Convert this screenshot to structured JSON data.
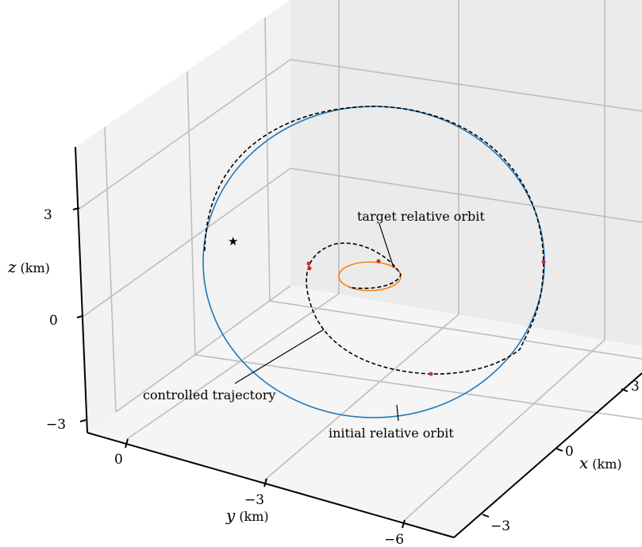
{
  "chart_data": {
    "type": "line3d",
    "axes": {
      "x": {
        "label": "x",
        "unit": "(km)",
        "ticks": [
          "3",
          "0",
          "−3"
        ]
      },
      "y": {
        "label": "y",
        "unit": "(km)",
        "ticks": [
          "0",
          "−3",
          "−6"
        ]
      },
      "z": {
        "label": "z",
        "unit": "(km)",
        "ticks": [
          "3",
          "0",
          "−3"
        ]
      }
    },
    "grid": true,
    "annotations": [
      {
        "text": "target relative orbit"
      },
      {
        "text": "controlled trajectory"
      },
      {
        "text": "initial relative orbit"
      }
    ],
    "series": [
      {
        "key": "initial",
        "color": "#1f77b4",
        "style": "solid"
      },
      {
        "key": "target",
        "color": "#ff7f0e",
        "style": "solid"
      },
      {
        "key": "controlled",
        "color": "#000000",
        "style": "dashed"
      }
    ],
    "markers": {
      "impulse_points": {
        "color": "#d62728",
        "count": 5
      },
      "start": {
        "symbol": "★",
        "color": "#000000"
      }
    }
  }
}
